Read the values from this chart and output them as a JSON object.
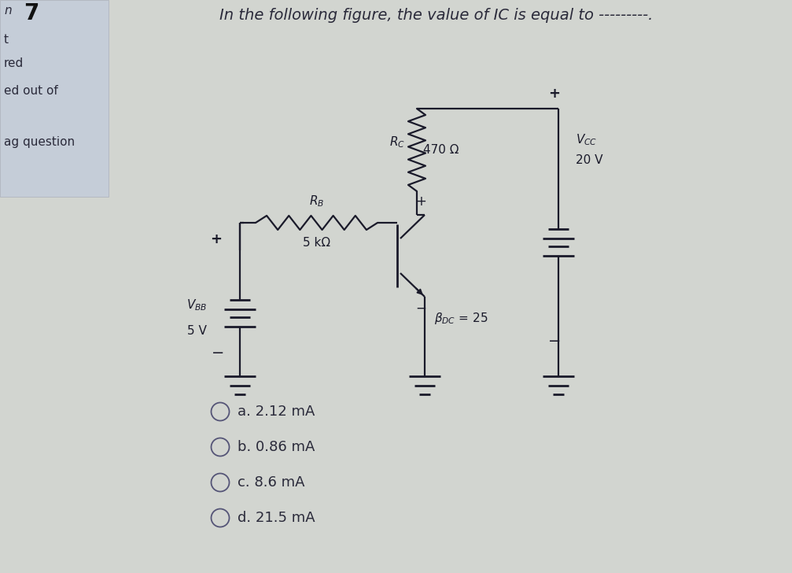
{
  "title": "In the following figure, the value of IC is equal to ---------.",
  "question_number": "7",
  "choices": [
    "a. 2.12 mA",
    "b. 0.86 mA",
    "c. 8.6 mA",
    "d. 21.5 mA"
  ],
  "bg_color": "#d2d5d0",
  "left_box_color": "#c5cdd8",
  "text_color": "#2a2a3a",
  "circuit_color": "#1a1a2a",
  "font_size_title": 14,
  "font_size_choices": 13,
  "xVBB": 3.05,
  "xBJT": 5.05,
  "xRC": 5.3,
  "xVCC": 7.1,
  "yGnd": 2.5,
  "yBase": 4.05,
  "yTop": 5.9,
  "yBattMid": 3.3
}
